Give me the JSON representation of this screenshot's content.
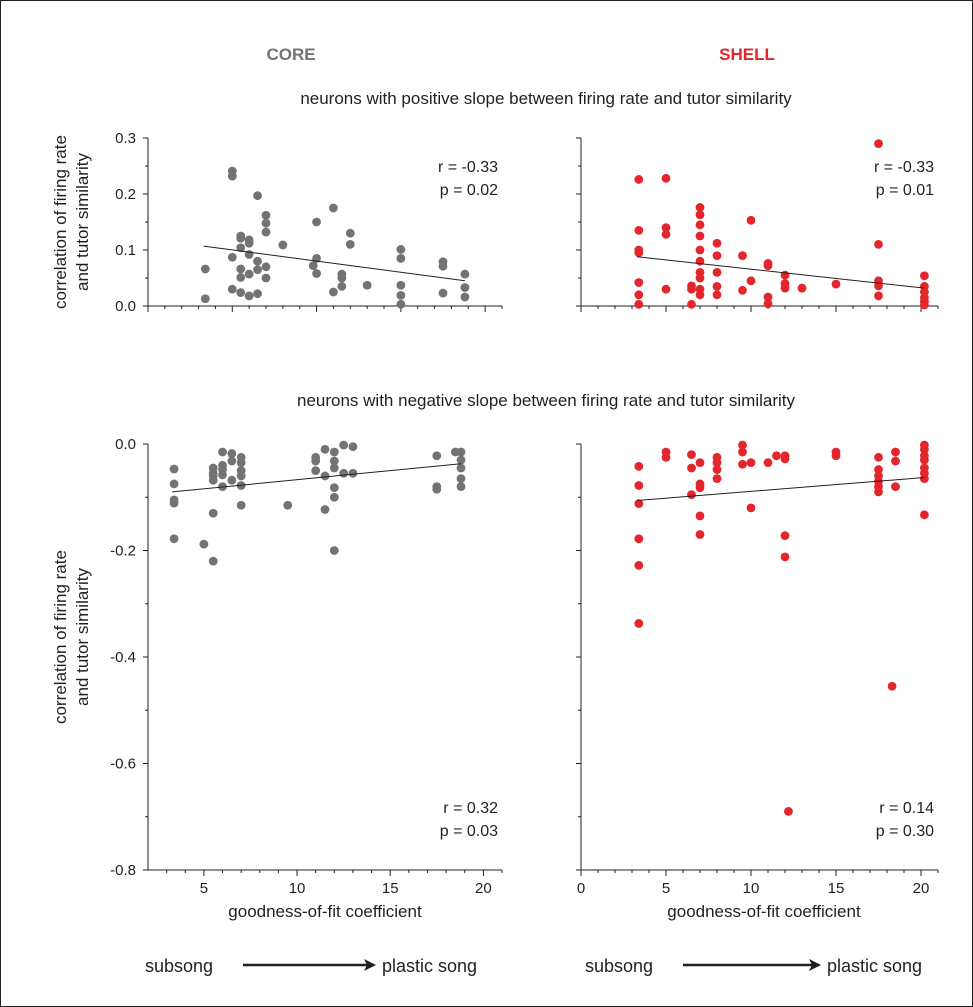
{
  "column_titles": {
    "core": "CORE",
    "shell": "SHELL",
    "core_color": "#737373",
    "shell_color": "#e3262b"
  },
  "row_titles": {
    "top": "neurons with positive slope between firing rate and tutor similarity",
    "bottom": "neurons with negative slope between firing rate and tutor similarity"
  },
  "ylabel_line1": "correlation of firing rate",
  "ylabel_line2": "and tutor similarity",
  "xlabel": "goodness-of-fit coefficient",
  "development": {
    "start": "subsong",
    "end": "plastic song"
  },
  "chart_data": [
    {
      "id": "core_positive",
      "type": "scatter",
      "color": "#737373",
      "xlim": [
        0,
        21
      ],
      "ylim": [
        0,
        0.3
      ],
      "yticks": [
        "0.0",
        "0.1",
        "0.2",
        "0.3"
      ],
      "xticks": [],
      "stats": {
        "r": "r = -0.33",
        "p": "p = 0.02"
      },
      "fit": [
        [
          3.3,
          0.107
        ],
        [
          18.8,
          0.045
        ]
      ],
      "points": [
        [
          3.4,
          0.066
        ],
        [
          3.4,
          0.013
        ],
        [
          5.0,
          0.241
        ],
        [
          5.0,
          0.232
        ],
        [
          5.0,
          0.087
        ],
        [
          5.0,
          0.03
        ],
        [
          5.5,
          0.125
        ],
        [
          5.5,
          0.121
        ],
        [
          5.5,
          0.104
        ],
        [
          5.5,
          0.066
        ],
        [
          5.5,
          0.051
        ],
        [
          5.5,
          0.024
        ],
        [
          6.0,
          0.118
        ],
        [
          6.0,
          0.112
        ],
        [
          6.0,
          0.092
        ],
        [
          6.0,
          0.057
        ],
        [
          6.0,
          0.018
        ],
        [
          6.5,
          0.197
        ],
        [
          6.5,
          0.08
        ],
        [
          6.5,
          0.065
        ],
        [
          6.5,
          0.022
        ],
        [
          7.0,
          0.162
        ],
        [
          7.0,
          0.148
        ],
        [
          7.0,
          0.132
        ],
        [
          7.0,
          0.07
        ],
        [
          7.0,
          0.05
        ],
        [
          8.0,
          0.109
        ],
        [
          9.8,
          0.072
        ],
        [
          10.0,
          0.15
        ],
        [
          10.0,
          0.085
        ],
        [
          10.0,
          0.058
        ],
        [
          11.0,
          0.175
        ],
        [
          11.0,
          0.025
        ],
        [
          11.5,
          0.057
        ],
        [
          11.5,
          0.05
        ],
        [
          11.5,
          0.035
        ],
        [
          12.0,
          0.13
        ],
        [
          12.0,
          0.11
        ],
        [
          13.0,
          0.037
        ],
        [
          15.0,
          0.101
        ],
        [
          15.0,
          0.085
        ],
        [
          15.0,
          0.037
        ],
        [
          15.0,
          0.019
        ],
        [
          15.0,
          0.003
        ],
        [
          17.5,
          0.079
        ],
        [
          17.5,
          0.071
        ],
        [
          17.5,
          0.023
        ],
        [
          18.8,
          0.057
        ],
        [
          18.8,
          0.033
        ],
        [
          18.8,
          0.016
        ]
      ]
    },
    {
      "id": "shell_positive",
      "type": "scatter",
      "color": "#e3262b",
      "xlim": [
        0,
        21
      ],
      "ylim": [
        0,
        0.3
      ],
      "yticks": [],
      "xticks": [],
      "stats": {
        "r": "r = -0.33",
        "p": "p = 0.01"
      },
      "fit": [
        [
          3.3,
          0.088
        ],
        [
          20.2,
          0.032
        ]
      ],
      "points": [
        [
          3.4,
          0.226
        ],
        [
          3.4,
          0.135
        ],
        [
          3.4,
          0.1
        ],
        [
          3.4,
          0.095
        ],
        [
          3.4,
          0.042
        ],
        [
          3.4,
          0.02
        ],
        [
          3.4,
          0.003
        ],
        [
          5.0,
          0.228
        ],
        [
          5.0,
          0.14
        ],
        [
          5.0,
          0.128
        ],
        [
          5.0,
          0.03
        ],
        [
          6.5,
          0.036
        ],
        [
          6.5,
          0.03
        ],
        [
          6.5,
          0.003
        ],
        [
          7.0,
          0.176
        ],
        [
          7.0,
          0.163
        ],
        [
          7.0,
          0.145
        ],
        [
          7.0,
          0.125
        ],
        [
          7.0,
          0.1
        ],
        [
          7.0,
          0.08
        ],
        [
          7.0,
          0.06
        ],
        [
          7.0,
          0.05
        ],
        [
          7.0,
          0.03
        ],
        [
          7.0,
          0.02
        ],
        [
          8.0,
          0.112
        ],
        [
          8.0,
          0.09
        ],
        [
          8.0,
          0.06
        ],
        [
          8.0,
          0.035
        ],
        [
          8.0,
          0.02
        ],
        [
          9.5,
          0.09
        ],
        [
          9.5,
          0.028
        ],
        [
          10.0,
          0.153
        ],
        [
          10.0,
          0.045
        ],
        [
          11.0,
          0.076
        ],
        [
          11.0,
          0.072
        ],
        [
          11.0,
          0.016
        ],
        [
          11.0,
          0.004
        ],
        [
          12.0,
          0.055
        ],
        [
          12.0,
          0.04
        ],
        [
          12.0,
          0.032
        ],
        [
          13.0,
          0.032
        ],
        [
          15.0,
          0.039
        ],
        [
          17.5,
          0.29
        ],
        [
          17.5,
          0.11
        ],
        [
          17.5,
          0.045
        ],
        [
          17.5,
          0.036
        ],
        [
          17.5,
          0.018
        ],
        [
          20.2,
          0.054
        ],
        [
          20.2,
          0.035
        ],
        [
          20.2,
          0.025
        ],
        [
          20.2,
          0.015
        ],
        [
          20.2,
          0.008
        ],
        [
          20.2,
          0.002
        ]
      ]
    },
    {
      "id": "core_negative",
      "type": "scatter",
      "color": "#737373",
      "xlim": [
        2,
        21
      ],
      "ylim": [
        -0.8,
        0
      ],
      "yticks": [
        "-0.8",
        "-0.6",
        "-0.4",
        "-0.2",
        "0.0"
      ],
      "xticks": [
        "5",
        "10",
        "15",
        "20"
      ],
      "stats": {
        "r": "r = 0.32",
        "p": "p = 0.03"
      },
      "fit": [
        [
          3.3,
          -0.09
        ],
        [
          18.8,
          -0.037
        ]
      ],
      "points": [
        [
          3.4,
          -0.047
        ],
        [
          3.4,
          -0.075
        ],
        [
          3.4,
          -0.105
        ],
        [
          3.4,
          -0.111
        ],
        [
          3.4,
          -0.178
        ],
        [
          5.0,
          -0.188
        ],
        [
          5.5,
          -0.045
        ],
        [
          5.5,
          -0.055
        ],
        [
          5.5,
          -0.06
        ],
        [
          5.5,
          -0.068
        ],
        [
          5.5,
          -0.13
        ],
        [
          5.5,
          -0.22
        ],
        [
          6.0,
          -0.015
        ],
        [
          6.0,
          -0.04
        ],
        [
          6.0,
          -0.048
        ],
        [
          6.0,
          -0.058
        ],
        [
          6.0,
          -0.08
        ],
        [
          6.5,
          -0.018
        ],
        [
          6.5,
          -0.032
        ],
        [
          6.5,
          -0.068
        ],
        [
          7.0,
          -0.025
        ],
        [
          7.0,
          -0.035
        ],
        [
          7.0,
          -0.05
        ],
        [
          7.0,
          -0.06
        ],
        [
          7.0,
          -0.078
        ],
        [
          7.0,
          -0.115
        ],
        [
          9.5,
          -0.115
        ],
        [
          11.0,
          -0.025
        ],
        [
          11.0,
          -0.032
        ],
        [
          11.0,
          -0.05
        ],
        [
          11.5,
          -0.01
        ],
        [
          11.5,
          -0.06
        ],
        [
          11.5,
          -0.123
        ],
        [
          12.0,
          -0.015
        ],
        [
          12.0,
          -0.032
        ],
        [
          12.0,
          -0.045
        ],
        [
          12.0,
          -0.082
        ],
        [
          12.0,
          -0.1
        ],
        [
          12.0,
          -0.2
        ],
        [
          12.5,
          -0.002
        ],
        [
          12.5,
          -0.055
        ],
        [
          13.0,
          -0.005
        ],
        [
          13.0,
          -0.055
        ],
        [
          17.5,
          -0.022
        ],
        [
          17.5,
          -0.085
        ],
        [
          17.5,
          -0.08
        ],
        [
          18.5,
          -0.015
        ],
        [
          18.8,
          -0.015
        ],
        [
          18.8,
          -0.03
        ],
        [
          18.8,
          -0.045
        ],
        [
          18.8,
          -0.065
        ],
        [
          18.8,
          -0.08
        ]
      ]
    },
    {
      "id": "shell_negative",
      "type": "scatter",
      "color": "#e3262b",
      "xlim": [
        0,
        21
      ],
      "ylim": [
        -0.8,
        0
      ],
      "yticks": [],
      "xticks": [
        "0",
        "5",
        "10",
        "15",
        "20"
      ],
      "stats": {
        "r": "r = 0.14",
        "p": "p = 0.30"
      },
      "fit": [
        [
          3.3,
          -0.106
        ],
        [
          20.2,
          -0.063
        ]
      ],
      "points": [
        [
          3.4,
          -0.042
        ],
        [
          3.4,
          -0.078
        ],
        [
          3.4,
          -0.112
        ],
        [
          3.4,
          -0.178
        ],
        [
          3.4,
          -0.228
        ],
        [
          3.4,
          -0.337
        ],
        [
          5.0,
          -0.015
        ],
        [
          5.0,
          -0.025
        ],
        [
          6.5,
          -0.02
        ],
        [
          6.5,
          -0.045
        ],
        [
          6.5,
          -0.095
        ],
        [
          7.0,
          -0.035
        ],
        [
          7.0,
          -0.075
        ],
        [
          7.0,
          -0.082
        ],
        [
          7.0,
          -0.135
        ],
        [
          7.0,
          -0.17
        ],
        [
          8.0,
          -0.025
        ],
        [
          8.0,
          -0.035
        ],
        [
          8.0,
          -0.048
        ],
        [
          8.0,
          -0.065
        ],
        [
          9.5,
          -0.002
        ],
        [
          9.5,
          -0.015
        ],
        [
          9.5,
          -0.038
        ],
        [
          10.0,
          -0.035
        ],
        [
          10.0,
          -0.12
        ],
        [
          11.0,
          -0.035
        ],
        [
          11.5,
          -0.022
        ],
        [
          12.0,
          -0.022
        ],
        [
          12.0,
          -0.028
        ],
        [
          12.0,
          -0.172
        ],
        [
          12.0,
          -0.212
        ],
        [
          12.2,
          -0.69
        ],
        [
          15.0,
          -0.015
        ],
        [
          15.0,
          -0.022
        ],
        [
          17.5,
          -0.025
        ],
        [
          17.5,
          -0.048
        ],
        [
          17.5,
          -0.06
        ],
        [
          17.5,
          -0.07
        ],
        [
          17.5,
          -0.08
        ],
        [
          17.5,
          -0.09
        ],
        [
          18.3,
          -0.455
        ],
        [
          18.5,
          -0.015
        ],
        [
          18.5,
          -0.032
        ],
        [
          18.5,
          -0.08
        ],
        [
          20.2,
          -0.002
        ],
        [
          20.2,
          -0.01
        ],
        [
          20.2,
          -0.022
        ],
        [
          20.2,
          -0.03
        ],
        [
          20.2,
          -0.045
        ],
        [
          20.2,
          -0.055
        ],
        [
          20.2,
          -0.065
        ],
        [
          20.2,
          -0.133
        ]
      ]
    }
  ]
}
